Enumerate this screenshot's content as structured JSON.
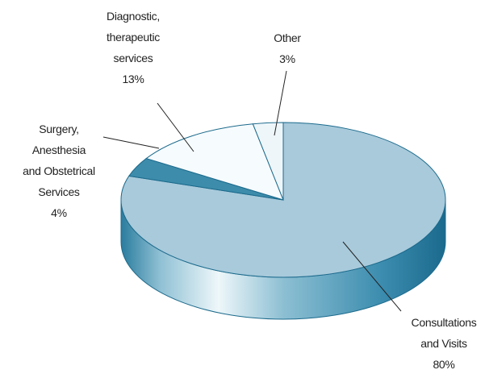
{
  "chart_data": {
    "type": "pie",
    "categories": [
      "Consultations\nand Visits",
      "Surgery,\nAnesthesia\nand Obstetrical\nServices",
      "Diagnostic,\ntherapeutic\nservices",
      "Other"
    ],
    "values": [
      80,
      4,
      13,
      3
    ],
    "value_labels": [
      "80%",
      "4%",
      "13%",
      "3%"
    ],
    "colors": [
      "#a8cadb",
      "#3d8cab",
      "#f6fbfd",
      "#eef6fa"
    ]
  }
}
